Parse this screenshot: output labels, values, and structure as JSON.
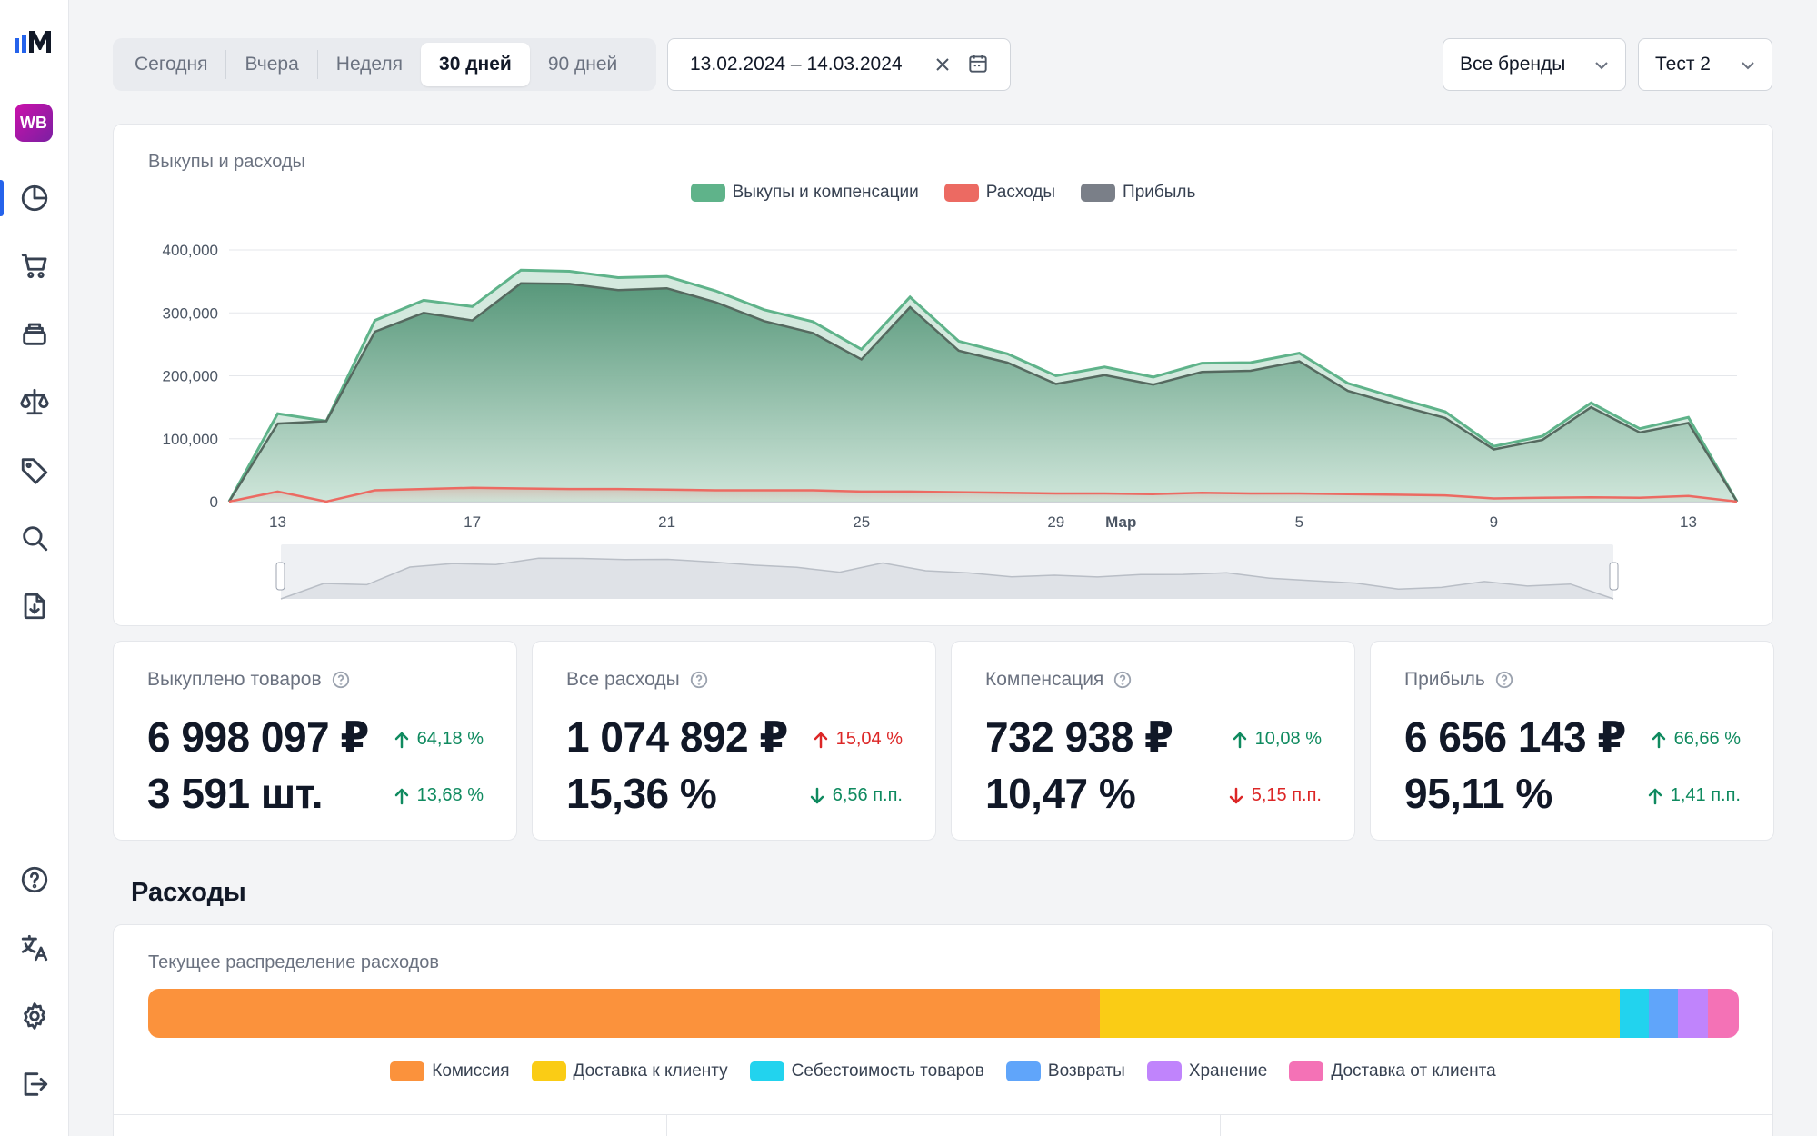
{
  "app": {
    "logo_text": "MM",
    "marketplace_badge": "WB"
  },
  "sidebar": {
    "items": [
      {
        "name": "dashboard",
        "icon": "pie-chart-icon",
        "active": true
      },
      {
        "name": "orders",
        "icon": "cart-icon"
      },
      {
        "name": "stock",
        "icon": "boxes-icon"
      },
      {
        "name": "balance",
        "icon": "scales-icon"
      },
      {
        "name": "prices",
        "icon": "tag-icon"
      },
      {
        "name": "search",
        "icon": "search-icon"
      },
      {
        "name": "reports",
        "icon": "file-download-icon"
      }
    ],
    "bottom_items": [
      {
        "name": "help",
        "icon": "help-icon"
      },
      {
        "name": "language",
        "icon": "translate-icon"
      },
      {
        "name": "settings",
        "icon": "gear-icon"
      },
      {
        "name": "logout",
        "icon": "logout-icon"
      }
    ]
  },
  "toolbar": {
    "periods": [
      "Сегодня",
      "Вчера",
      "Неделя",
      "30 дней",
      "90 дней"
    ],
    "active_period": "30 дней",
    "date_range": "13.02.2024 – 14.03.2024",
    "brand_select": "Все бренды",
    "account_select": "Тест 2"
  },
  "colors": {
    "accent": "#2563eb",
    "buyouts": "#5fb38a",
    "expenses": "#ec6a62",
    "profit": "#7a7f88",
    "up": "#0f8a5f",
    "down": "#dc2626"
  },
  "chart_data": {
    "type": "area",
    "title": "Выкупы и расходы",
    "legend": [
      "Выкупы и компенсации",
      "Расходы",
      "Прибыль"
    ],
    "y_ticks": [
      "400,000",
      "300,000",
      "200,000",
      "100,000",
      "0"
    ],
    "ylim": [
      0,
      400000
    ],
    "x_tick_labels": [
      {
        "i": 1,
        "label": "13"
      },
      {
        "i": 5,
        "label": "17"
      },
      {
        "i": 9,
        "label": "21"
      },
      {
        "i": 13,
        "label": "25"
      },
      {
        "i": 17,
        "label": "29"
      },
      {
        "i": 18,
        "label": "Мар",
        "bold": true
      },
      {
        "i": 22,
        "label": "5"
      },
      {
        "i": 26,
        "label": "9"
      },
      {
        "i": 30,
        "label": "13"
      }
    ],
    "x": [
      "12.02",
      "13.02",
      "14.02",
      "15.02",
      "16.02",
      "17.02",
      "18.02",
      "19.02",
      "20.02",
      "21.02",
      "22.02",
      "23.02",
      "24.02",
      "25.02",
      "26.02",
      "27.02",
      "28.02",
      "29.02",
      "01.03",
      "02.03",
      "03.03",
      "04.03",
      "05.03",
      "06.03",
      "07.03",
      "08.03",
      "09.03",
      "10.03",
      "11.03",
      "12.03",
      "13.03",
      "14.03"
    ],
    "series": [
      {
        "name": "Выкупы и компенсации",
        "values": [
          0,
          140000,
          128000,
          288000,
          320000,
          310000,
          368000,
          366000,
          356000,
          358000,
          335000,
          305000,
          286000,
          242000,
          325000,
          255000,
          235000,
          200000,
          214000,
          198000,
          220000,
          221000,
          236000,
          188000,
          165000,
          143000,
          88000,
          104000,
          157000,
          116000,
          134000,
          0
        ]
      },
      {
        "name": "Расходы",
        "values": [
          0,
          16000,
          0,
          18000,
          20000,
          22000,
          21000,
          20000,
          20000,
          19000,
          18000,
          18000,
          18000,
          16000,
          16000,
          15000,
          14000,
          13000,
          13000,
          12000,
          14000,
          13000,
          13000,
          12000,
          11000,
          10000,
          5000,
          6000,
          7000,
          6000,
          9000,
          0
        ]
      },
      {
        "name": "Прибыль",
        "values": [
          0,
          124000,
          128000,
          270000,
          300000,
          288000,
          347000,
          346000,
          336000,
          339000,
          317000,
          287000,
          268000,
          226000,
          309000,
          240000,
          221000,
          187000,
          201000,
          186000,
          206000,
          208000,
          223000,
          176000,
          154000,
          133000,
          83000,
          98000,
          150000,
          110000,
          125000,
          0
        ]
      }
    ]
  },
  "kpis": [
    {
      "label": "Выкуплено товаров",
      "value1": "6 998 097 ₽",
      "delta1": "64,18 %",
      "dir1": "up",
      "value2": "3 591 шт.",
      "delta2": "13,68 %",
      "dir2": "up"
    },
    {
      "label": "Все расходы",
      "value1": "1 074 892 ₽",
      "delta1": "15,04 %",
      "dir1": "down-up",
      "value2": "15,36 %",
      "delta2": "6,56 п.п.",
      "dir2": "up-down"
    },
    {
      "label": "Компенсация",
      "value1": "732 938 ₽",
      "delta1": "10,08 %",
      "dir1": "up",
      "value2": "10,47 %",
      "delta2": "5,15 п.п.",
      "dir2": "down"
    },
    {
      "label": "Прибыль",
      "value1": "6 656 143 ₽",
      "delta1": "66,66 %",
      "dir1": "up",
      "value2": "95,11 %",
      "delta2": "1,41 п.п.",
      "dir2": "up"
    }
  ],
  "expenses": {
    "section_title": "Расходы",
    "card_title": "Текущее распределение расходов",
    "segments": [
      {
        "name": "Комиссия",
        "share": 0.5985,
        "color": "#fb923c"
      },
      {
        "name": "Доставка к клиенту",
        "share": 0.3264,
        "color": "#facc15"
      },
      {
        "name": "Себестоимость товаров",
        "share": 0.0185,
        "color": "#22d3ee"
      },
      {
        "name": "Возвраты",
        "share": 0.0185,
        "color": "#60a5fa"
      },
      {
        "name": "Хранение",
        "share": 0.0185,
        "color": "#c084fc"
      },
      {
        "name": "Доставка от клиента",
        "share": 0.0196,
        "color": "#f472b6"
      }
    ]
  }
}
